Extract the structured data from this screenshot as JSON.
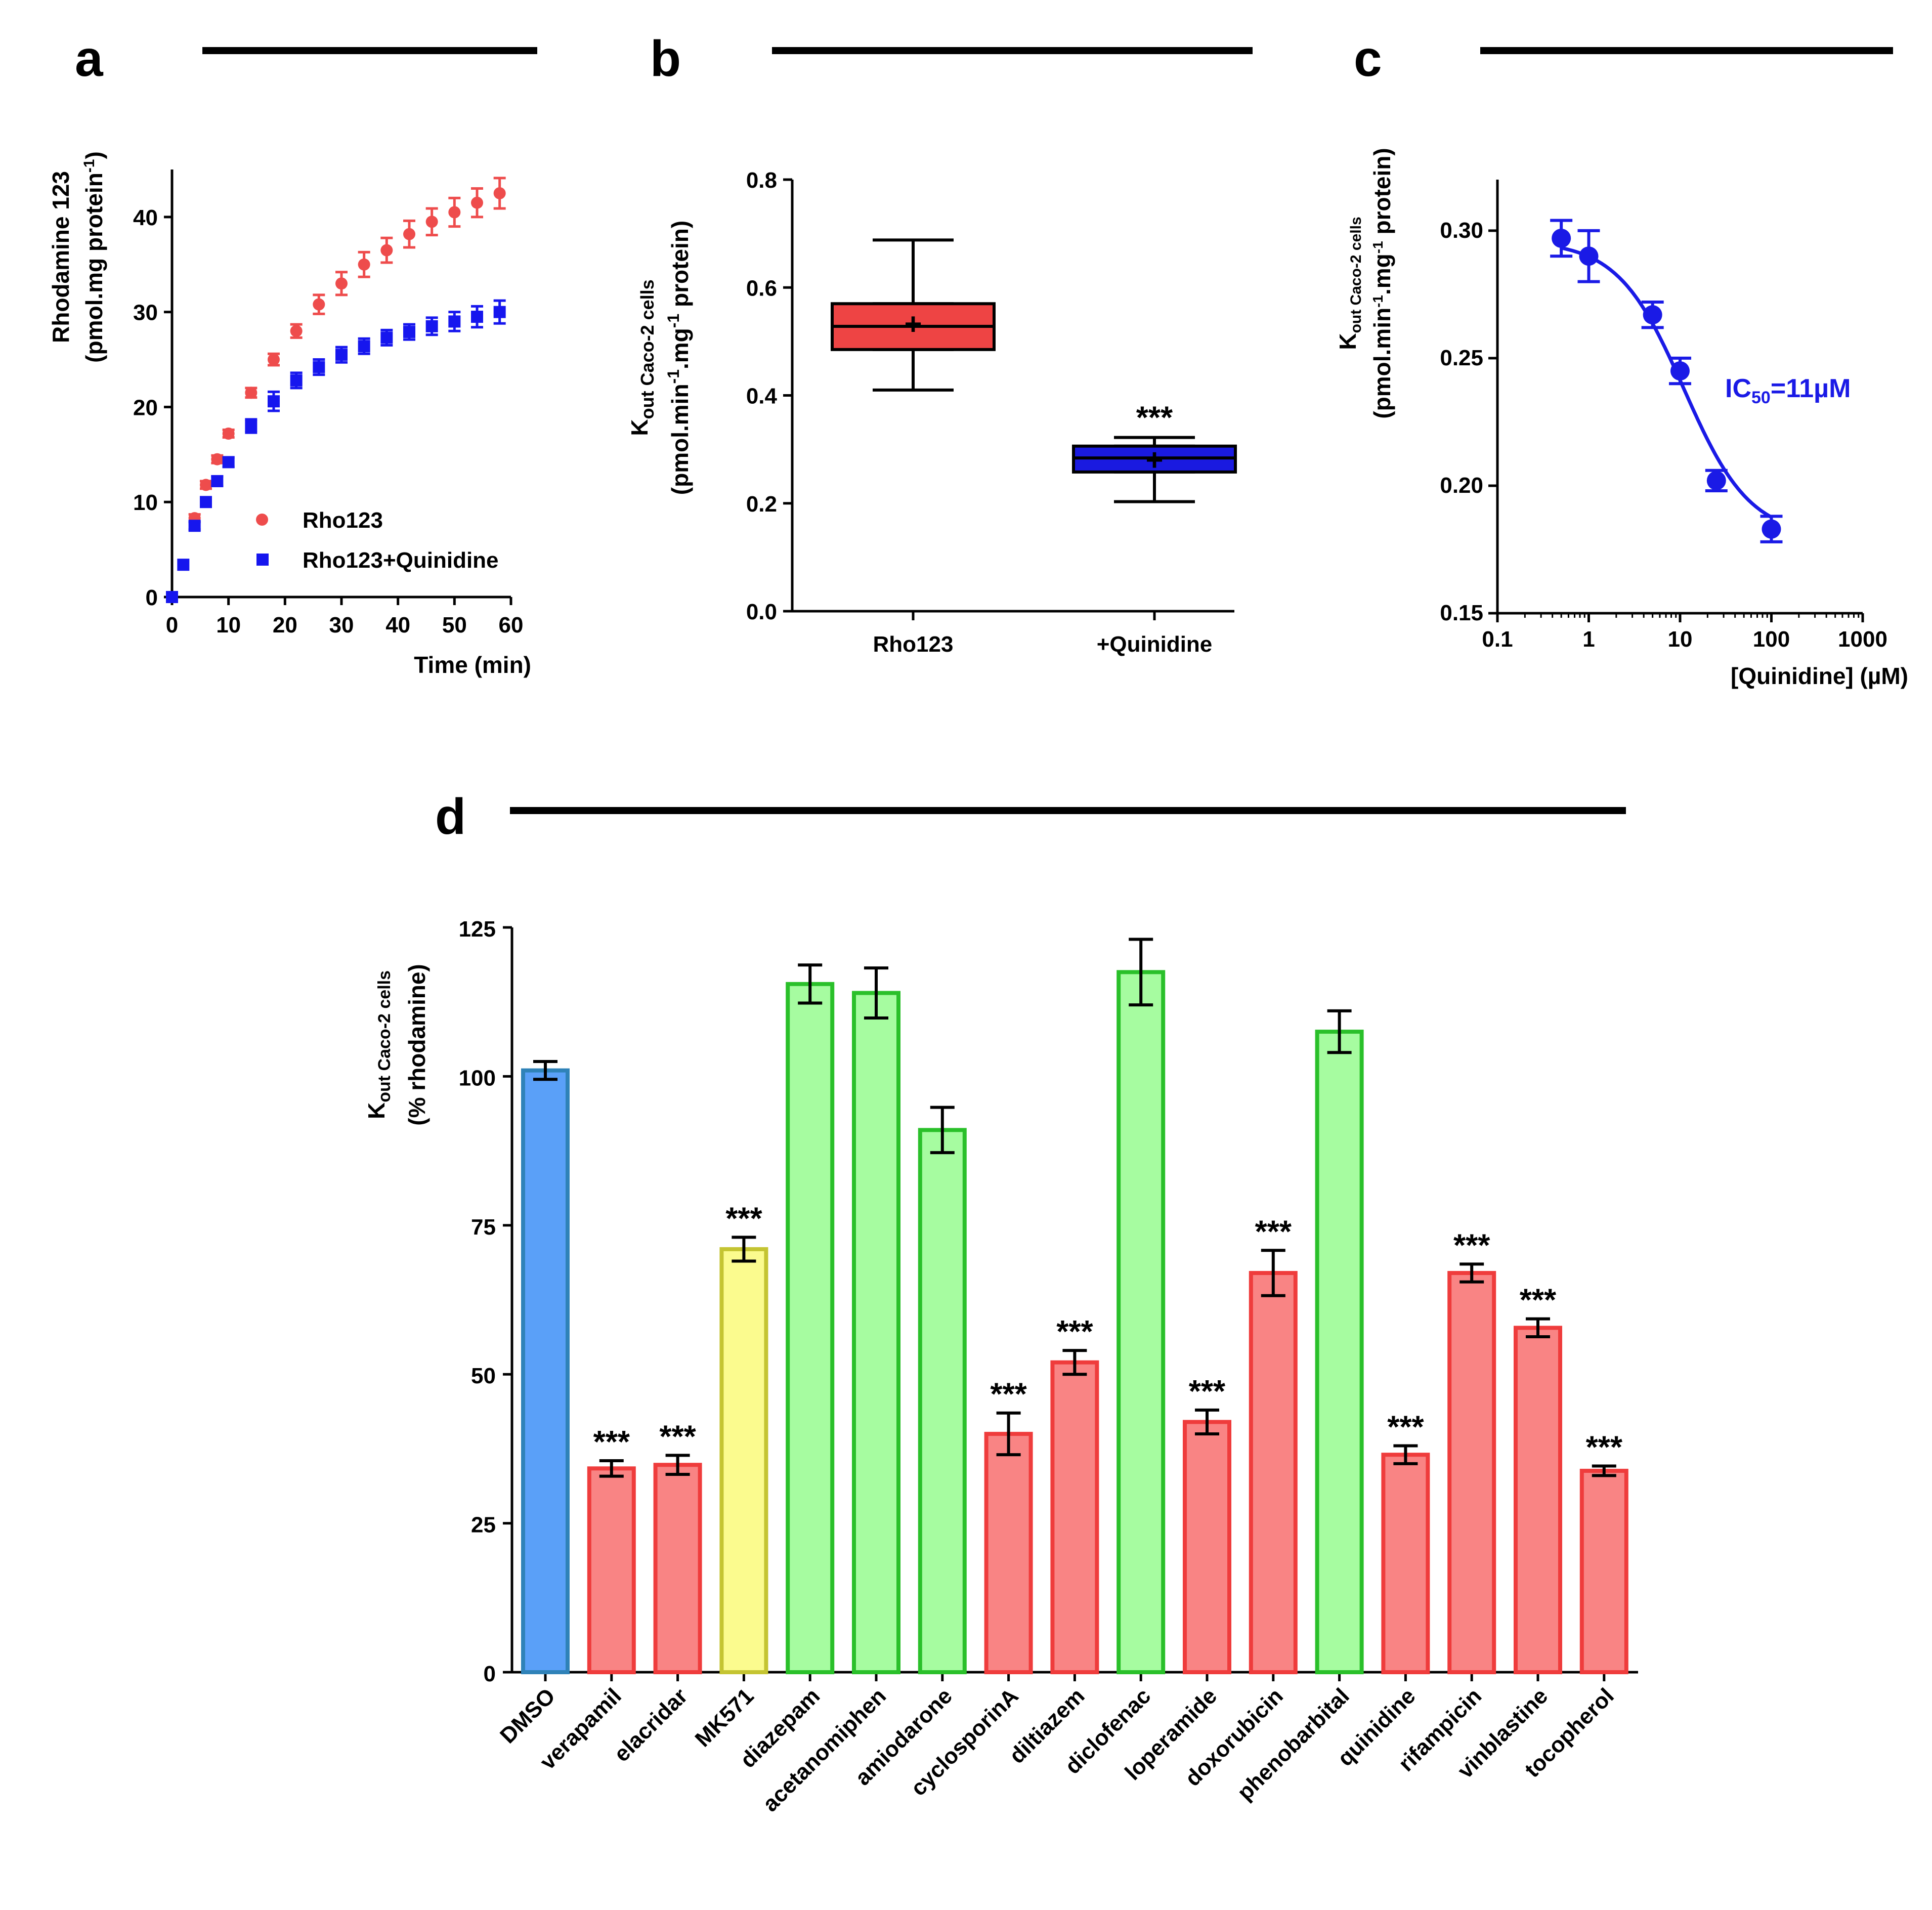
{
  "panels": {
    "a": "a",
    "b": "b",
    "c": "c",
    "d": "d"
  },
  "chart_data": [
    {
      "id": "a",
      "type": "scatter",
      "ylabel_line1": "Rhodamine 123",
      "ylabel_line2": "(pmol.mg protein",
      "ylabel_sup": "-1",
      "ylabel_close": ")",
      "xlabel": "Time (min)",
      "xlim": [
        0,
        60
      ],
      "ylim": [
        0,
        45
      ],
      "xticks": [
        0,
        10,
        20,
        30,
        40,
        50,
        60
      ],
      "yticks": [
        0,
        10,
        20,
        30,
        40
      ],
      "series": [
        {
          "name": "Rho123",
          "color": "#ee4c4c",
          "marker": "circle",
          "x": [
            0,
            4,
            6,
            8,
            10,
            14,
            18,
            22,
            26,
            30,
            34,
            38,
            42,
            46,
            50,
            54,
            58
          ],
          "y": [
            0,
            8.3,
            11.8,
            14.5,
            17.2,
            21.5,
            25.0,
            28.0,
            30.8,
            33.0,
            35.0,
            36.5,
            38.2,
            39.5,
            40.5,
            41.5,
            42.5
          ],
          "err": [
            0.3,
            0.4,
            0.4,
            0.4,
            0.4,
            0.5,
            0.6,
            0.7,
            1.0,
            1.2,
            1.3,
            1.3,
            1.4,
            1.4,
            1.5,
            1.5,
            1.6
          ]
        },
        {
          "name": "Rho123+Quinidine",
          "color": "#1616ee",
          "marker": "square",
          "x": [
            0,
            2,
            4,
            6,
            8,
            10,
            14,
            18,
            22,
            26,
            30,
            34,
            38,
            42,
            46,
            50,
            54,
            58
          ],
          "y": [
            0,
            3.4,
            7.5,
            10.0,
            12.2,
            14.2,
            18.0,
            20.6,
            22.8,
            24.2,
            25.5,
            26.4,
            27.3,
            27.9,
            28.5,
            29.0,
            29.5,
            30.0
          ],
          "err": [
            0.3,
            0.3,
            0.4,
            0.4,
            0.5,
            0.5,
            0.7,
            1.0,
            0.8,
            0.8,
            0.8,
            0.8,
            0.8,
            0.8,
            0.9,
            1.0,
            1.1,
            1.2
          ]
        }
      ]
    },
    {
      "id": "b",
      "type": "box",
      "ylabel_main": "K",
      "ylabel_sub": "out Caco-2 cells",
      "ylabel_line2": "(pmol.min",
      "ylabel_sup1": "-1",
      "ylabel_mid": ".mg",
      "ylabel_sup2": "-1",
      "ylabel_end": " protein)",
      "ylim": [
        0,
        0.8
      ],
      "yticks": [
        "0.0",
        "0.2",
        "0.4",
        "0.6",
        "0.8"
      ],
      "categories": [
        "Rho123",
        "+Quinidine"
      ],
      "colors": [
        "#ee4444",
        "#1a1ae0"
      ],
      "boxes": [
        {
          "min": 0.41,
          "q1": 0.485,
          "median": 0.528,
          "mean": 0.532,
          "q3": 0.57,
          "max": 0.688
        },
        {
          "min": 0.203,
          "q1": 0.258,
          "median": 0.284,
          "mean": 0.28,
          "q3": 0.306,
          "max": 0.322
        }
      ],
      "significance": [
        "",
        "***"
      ]
    },
    {
      "id": "c",
      "type": "line",
      "ylabel_main": "K",
      "ylabel_sub": "out Caco-2 cells",
      "ylabel_line2": "(pmol.min",
      "ylabel_sup1": "-1",
      "ylabel_mid": ".mg",
      "ylabel_sup2": "-1",
      "ylabel_end": " protein)",
      "xlabel": "[Quinidine] (µM)",
      "xscale": "log",
      "xlim": [
        0.1,
        1000
      ],
      "ylim": [
        0.15,
        0.32
      ],
      "xticks": [
        "0.1",
        "1",
        "10",
        "100",
        "1000"
      ],
      "yticks": [
        "0.15",
        "0.20",
        "0.25",
        "0.30"
      ],
      "color": "#1a1ae6",
      "points": {
        "x": [
          0.5,
          1,
          5,
          10,
          25,
          100
        ],
        "y": [
          0.297,
          0.29,
          0.267,
          0.245,
          0.202,
          0.183
        ],
        "err": [
          0.007,
          0.01,
          0.005,
          0.005,
          0.004,
          0.005
        ]
      },
      "fit": {
        "top": 0.296,
        "bottom": 0.18,
        "ic50": 11,
        "hill": 1.2
      },
      "annotation": {
        "prefix": "IC",
        "sub": "50",
        "suffix": "=11µM"
      }
    },
    {
      "id": "d",
      "type": "bar",
      "ylabel_main": "K",
      "ylabel_sub": "out Caco-2 cells",
      "ylabel_line2": "(% rhodamine)",
      "ylim": [
        0,
        125
      ],
      "yticks": [
        0,
        25,
        50,
        75,
        100,
        125
      ],
      "categories": [
        "DMSO",
        "verapamil",
        "elacridar",
        "MK571",
        "diazepam",
        "acetanomiphen",
        "amiodarone",
        "cyclosporinA",
        "diltiazem",
        "diclofenac",
        "loperamide",
        "doxorubicin",
        "phenobarbital",
        "quinidine",
        "rifampicin",
        "vinblastine",
        "tocopherol"
      ],
      "values": [
        101,
        34.2,
        34.8,
        71,
        115.5,
        114,
        91,
        40,
        52,
        117.5,
        42,
        67,
        107.5,
        36.5,
        67,
        57.8,
        33.8
      ],
      "err": [
        1.5,
        1.3,
        1.6,
        2.0,
        3.2,
        4.2,
        3.8,
        3.5,
        2.0,
        5.5,
        2.0,
        3.8,
        3.5,
        1.5,
        1.5,
        1.5,
        0.8
      ],
      "stars": [
        "",
        "***",
        "***",
        "***",
        "",
        "",
        "",
        "***",
        "***",
        "",
        "***",
        "***",
        "",
        "***",
        "***",
        "***",
        "***"
      ],
      "bar_class": [
        "blue",
        "red",
        "red",
        "yellow",
        "green",
        "green",
        "green",
        "red",
        "red",
        "green",
        "red",
        "red",
        "green",
        "red",
        "red",
        "red",
        "red"
      ],
      "palette": {
        "blue": {
          "fill": "#5aa0f8",
          "stroke": "#2f82b8"
        },
        "red": {
          "fill": "#f98484",
          "stroke": "#ef3c3c"
        },
        "yellow": {
          "fill": "#fbfb8e",
          "stroke": "#c4c432"
        },
        "green": {
          "fill": "#a6fca0",
          "stroke": "#2ac02a"
        }
      }
    }
  ]
}
